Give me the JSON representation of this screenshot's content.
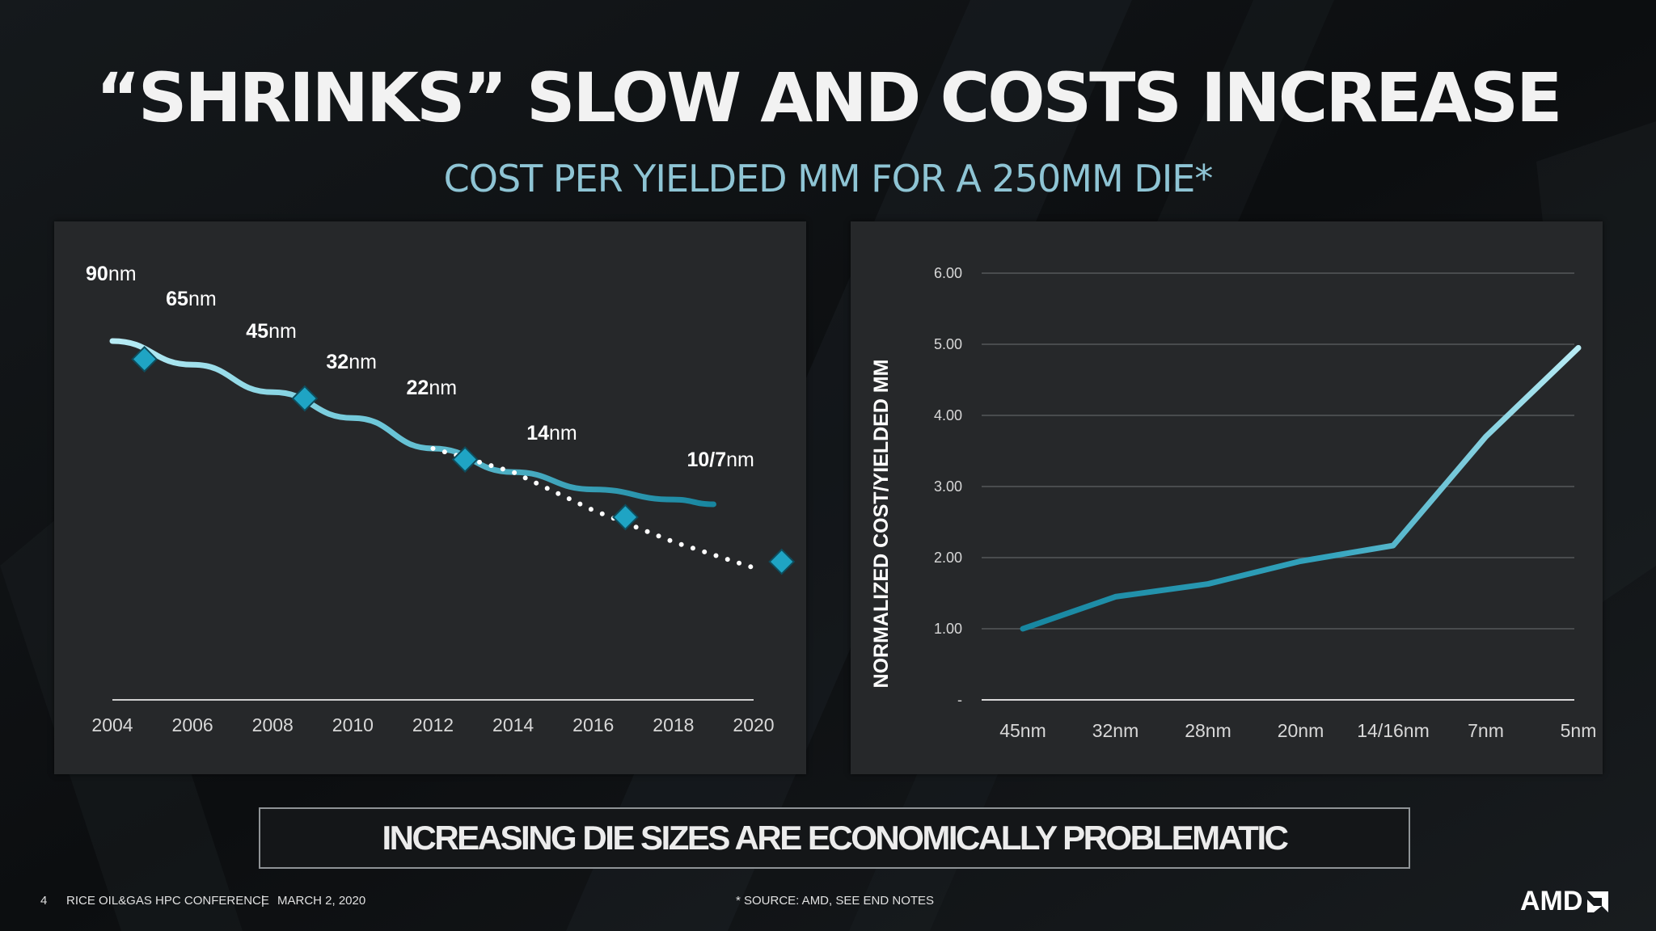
{
  "slide": {
    "title": "“SHRINKS” SLOW AND COSTS INCREASE",
    "subtitle": "COST PER YIELDED MM FOR A 250MM DIE*",
    "banner": "INCREASING DIE SIZES ARE ECONOMICALLY PROBLEMATIC",
    "footer_page": "4",
    "footer_conference": "RICE OIL&GAS HPC CONFERENCE",
    "footer_sep": "|",
    "footer_date": "MARCH 2, 2020",
    "source_note": "* SOURCE: AMD, SEE END NOTES",
    "logo": "AMD"
  },
  "colors": {
    "background": "#0d0f11",
    "panel": "#26282a",
    "accent_light": "#b8ecf5",
    "accent_dark": "#1786a0",
    "marker": "#1fa4c4",
    "subtitle": "#8ec4d4"
  },
  "chart_data": [
    {
      "type": "line",
      "x_ticks": [
        "2004",
        "2006",
        "2008",
        "2010",
        "2012",
        "2014",
        "2016",
        "2018",
        "2020"
      ],
      "xlim": [
        2004,
        2020
      ],
      "axis_values_printed": false,
      "series": [
        {
          "style": "solid",
          "x": [
            2004,
            2006,
            2008,
            2010,
            2012,
            2014,
            2016,
            2018,
            2019
          ],
          "y": [
            100,
            91.4,
            81.4,
            72.0,
            60.9,
            52.3,
            46.0,
            42.3,
            40.6
          ]
        },
        {
          "style": "dotted",
          "x": [
            2012,
            2014,
            2016,
            2018,
            2020
          ],
          "y": [
            60.9,
            52.3,
            38.4,
            26.9,
            17.5
          ]
        }
      ],
      "markers": [
        {
          "x": 2004.8,
          "y": 93.4
        },
        {
          "x": 2008.8,
          "y": 79.1
        },
        {
          "x": 2012.8,
          "y": 56.9
        },
        {
          "x": 2016.8,
          "y": 35.9
        },
        {
          "x": 2020.7,
          "y": 19.7
        }
      ],
      "process_labels": [
        {
          "bold": "90",
          "unit": "nm",
          "x": 2004
        },
        {
          "bold": "65",
          "unit": "nm",
          "x": 2006
        },
        {
          "bold": "45",
          "unit": "nm",
          "x": 2008
        },
        {
          "bold": "32",
          "unit": "nm",
          "x": 2010
        },
        {
          "bold": "22",
          "unit": "nm",
          "x": 2012
        },
        {
          "bold": "14",
          "unit": "nm",
          "x": 2015
        },
        {
          "bold": "10/7",
          "unit": "nm",
          "x": 2019
        }
      ]
    },
    {
      "type": "line",
      "categories": [
        "45nm",
        "32nm",
        "28nm",
        "20nm",
        "14/16nm",
        "7nm",
        "5nm"
      ],
      "ylabel": "NORMALIZED COST/YIELDED MM",
      "y_ticks": [
        "-",
        "1.00",
        "2.00",
        "3.00",
        "4.00",
        "5.00",
        "6.00"
      ],
      "ylim": [
        0,
        6
      ],
      "grid": true,
      "series": [
        {
          "values": [
            1.0,
            1.45,
            1.63,
            1.95,
            2.17,
            3.7,
            4.95
          ]
        }
      ]
    }
  ]
}
